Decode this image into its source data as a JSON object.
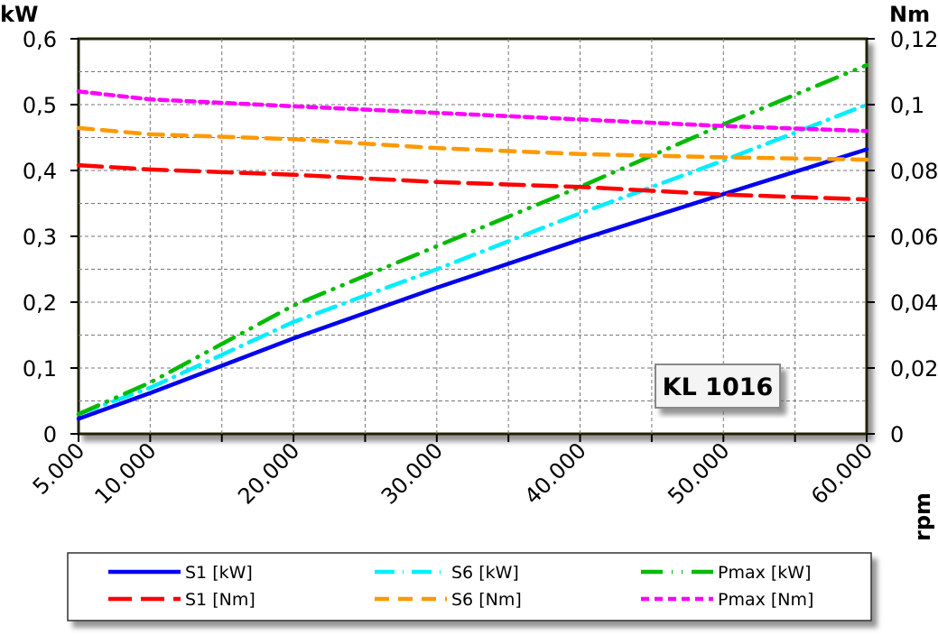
{
  "chart_data": {
    "type": "line",
    "y_left_label": "kW",
    "y_right_label": "Nm",
    "x_label": "rpm",
    "annotation": "KL 1016",
    "xlim": [
      5000,
      60000
    ],
    "ylim_left": [
      0,
      0.6
    ],
    "ylim_right": [
      0,
      0.12
    ],
    "grid": true,
    "legend_placement": "bottom",
    "x_ticks": [
      5000,
      10000,
      20000,
      30000,
      40000,
      50000,
      60000
    ],
    "x_tick_labels": [
      "5.000",
      "10.000",
      "20.000",
      "30.000",
      "40.000",
      "50.000",
      "60.000"
    ],
    "y_left_ticks": [
      0,
      0.1,
      0.2,
      0.3,
      0.4,
      0.5,
      0.6
    ],
    "y_left_tick_labels": [
      "0",
      "0,1",
      "0,2",
      "0,3",
      "0,4",
      "0,5",
      "0,6"
    ],
    "y_right_ticks": [
      0,
      0.02,
      0.04,
      0.06,
      0.08,
      0.1,
      0.12
    ],
    "y_right_tick_labels": [
      "0",
      "0,02",
      "0,04",
      "0,06",
      "0,08",
      "0,1",
      "0,12"
    ],
    "x": [
      5000,
      10000,
      20000,
      30000,
      40000,
      50000,
      60000
    ],
    "series": [
      {
        "name": "S1 [kW]",
        "axis": "left",
        "color": "#0000ee",
        "dash": "solid",
        "values": [
          0.023,
          0.062,
          0.145,
          0.222,
          0.295,
          0.364,
          0.432
        ]
      },
      {
        "name": "S6 [kW]",
        "axis": "left",
        "color": "#00eeff",
        "dash": "dashdot",
        "values": [
          0.03,
          0.07,
          0.17,
          0.25,
          0.335,
          0.415,
          0.5
        ]
      },
      {
        "name": "Pmax [kW]",
        "axis": "left",
        "color": "#00bb00",
        "dash": "dashdotdot",
        "values": [
          0.03,
          0.078,
          0.195,
          0.285,
          0.375,
          0.47,
          0.56
        ]
      },
      {
        "name": "S1 [Nm]",
        "axis": "right",
        "color": "#ff0000",
        "dash": "longdash",
        "values": [
          0.0816,
          0.0803,
          0.0787,
          0.0765,
          0.075,
          0.0727,
          0.0712
        ]
      },
      {
        "name": "S6 [Nm]",
        "axis": "right",
        "color": "#ff9900",
        "dash": "dash",
        "values": [
          0.0929,
          0.091,
          0.0895,
          0.0868,
          0.085,
          0.084,
          0.0833
        ]
      },
      {
        "name": "Pmax [Nm]",
        "axis": "right",
        "color": "#ff00ff",
        "dash": "shortdash",
        "values": [
          0.104,
          0.1016,
          0.0995,
          0.0975,
          0.0955,
          0.0935,
          0.092
        ]
      }
    ]
  }
}
